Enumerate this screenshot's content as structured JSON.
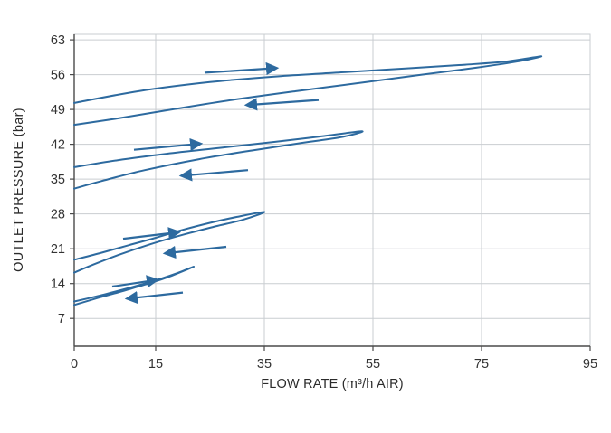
{
  "page": {
    "background": "#ffffff"
  },
  "chart_data": {
    "type": "line",
    "title": "",
    "xlabel": "FLOW RATE (m³/h AIR)",
    "ylabel": "OUTLET PRESSURE (bar)",
    "xlim": [
      0,
      95
    ],
    "ylim": [
      1.4,
      64.1
    ],
    "x_ticks": [
      0,
      15,
      35,
      55,
      75,
      95
    ],
    "y_ticks": [
      7,
      14,
      21,
      28,
      35,
      42,
      49,
      56,
      63
    ],
    "grid": true,
    "legend": false,
    "colors": {
      "curve": "#2d6a9f",
      "grid": "#c9cdd1",
      "axis": "#4a4a4a",
      "text": "#333333",
      "background": "#ffffff"
    },
    "series": [
      {
        "name": "hysteresis-loop-1",
        "points": [
          [
            0,
            50.3
          ],
          [
            12,
            52.7
          ],
          [
            25,
            54.5
          ],
          [
            38,
            55.7
          ],
          [
            50,
            56.5
          ],
          [
            62,
            57.3
          ],
          [
            72,
            58.0
          ],
          [
            80,
            58.7
          ],
          [
            86,
            59.7
          ],
          [
            82,
            58.7
          ],
          [
            74,
            57.4
          ],
          [
            64,
            56.0
          ],
          [
            53,
            54.4
          ],
          [
            41,
            52.7
          ],
          [
            29,
            50.9
          ],
          [
            18,
            49.0
          ],
          [
            8,
            47.2
          ],
          [
            0,
            45.9
          ]
        ]
      },
      {
        "name": "hysteresis-loop-2",
        "points": [
          [
            0,
            37.4
          ],
          [
            8,
            38.8
          ],
          [
            17,
            40.1
          ],
          [
            27,
            41.3
          ],
          [
            37,
            42.5
          ],
          [
            45,
            43.5
          ],
          [
            53,
            44.6
          ],
          [
            49,
            43.4
          ],
          [
            42,
            42.3
          ],
          [
            33,
            40.8
          ],
          [
            23,
            39.0
          ],
          [
            13,
            36.8
          ],
          [
            5,
            34.6
          ],
          [
            0,
            33.1
          ]
        ]
      },
      {
        "name": "hysteresis-loop-3",
        "points": [
          [
            0,
            18.8
          ],
          [
            5,
            20.2
          ],
          [
            10,
            21.7
          ],
          [
            15,
            23.2
          ],
          [
            20,
            24.8
          ],
          [
            25,
            26.2
          ],
          [
            30,
            27.4
          ],
          [
            35,
            28.4
          ],
          [
            31,
            26.8
          ],
          [
            26,
            25.5
          ],
          [
            20,
            23.8
          ],
          [
            14,
            21.9
          ],
          [
            8,
            19.7
          ],
          [
            3,
            17.6
          ],
          [
            0,
            16.2
          ]
        ]
      },
      {
        "name": "hysteresis-loop-4",
        "points": [
          [
            0,
            10.4
          ],
          [
            4,
            11.4
          ],
          [
            8,
            12.5
          ],
          [
            12,
            13.7
          ],
          [
            16,
            15.0
          ],
          [
            19,
            16.1
          ],
          [
            22,
            17.4
          ],
          [
            18,
            15.6
          ],
          [
            14,
            14.1
          ],
          [
            9,
            12.5
          ],
          [
            4,
            11.0
          ],
          [
            0,
            9.7
          ]
        ]
      }
    ],
    "arrows": [
      {
        "name": "loop-1-forward",
        "from": [
          24,
          56.4
        ],
        "to": [
          37,
          57.3
        ]
      },
      {
        "name": "loop-1-return",
        "from": [
          45,
          50.9
        ],
        "to": [
          32,
          49.9
        ]
      },
      {
        "name": "loop-2-forward",
        "from": [
          11,
          40.9
        ],
        "to": [
          23,
          42.1
        ]
      },
      {
        "name": "loop-2-return",
        "from": [
          32,
          36.8
        ],
        "to": [
          20,
          35.7
        ]
      },
      {
        "name": "loop-3-forward",
        "from": [
          9,
          23.0
        ],
        "to": [
          19,
          24.3
        ]
      },
      {
        "name": "loop-3-return",
        "from": [
          28,
          21.4
        ],
        "to": [
          17,
          20.1
        ]
      },
      {
        "name": "loop-4-forward",
        "from": [
          7,
          13.4
        ],
        "to": [
          15,
          14.7
        ]
      },
      {
        "name": "loop-4-return",
        "from": [
          20,
          12.2
        ],
        "to": [
          10,
          11.0
        ]
      }
    ]
  }
}
